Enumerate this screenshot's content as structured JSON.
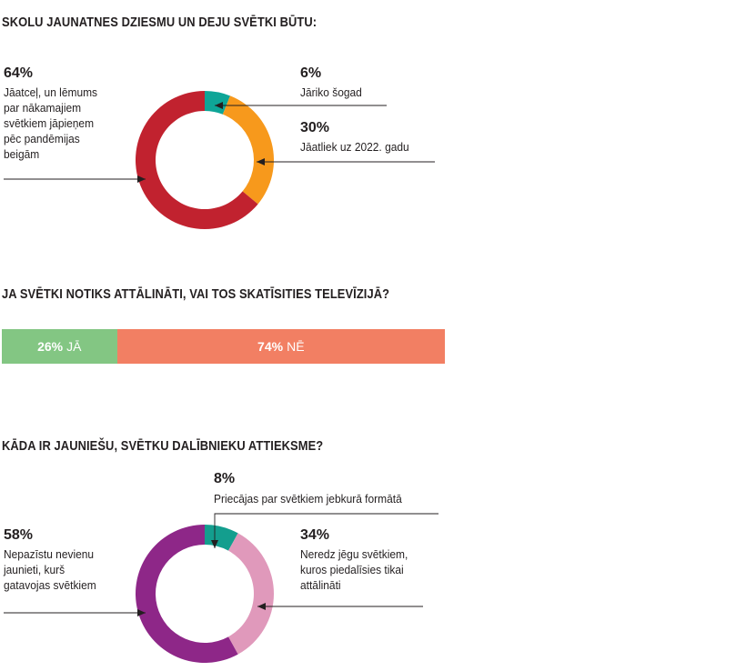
{
  "chart_data": [
    {
      "type": "pie",
      "title": "SKOLU JAUNATNES DZIESMU UN DEJU SVĒTKI BŪTU:",
      "slices": [
        {
          "percent_label": "6%",
          "value": 6,
          "label": "Jāriko šogad",
          "color": "#0ea597"
        },
        {
          "percent_label": "30%",
          "value": 30,
          "label": "Jāatliek uz 2022. gadu",
          "color": "#f7991c"
        },
        {
          "percent_label": "64%",
          "value": 64,
          "label": "Jāatceļ, un lēmums\npar nākamajiem\nsvētkiem jāpieņem\npēc pandēmijas\nbeigām",
          "color": "#c1222f"
        }
      ]
    },
    {
      "type": "bar",
      "title": "JA SVĒTKI NOTIKS ATTĀLINĀTI, VAI TOS SKATĪSITIES TELEVĪZIJĀ?",
      "segments": [
        {
          "percent_label": "26%",
          "value": 26,
          "label": "JĀ",
          "color": "#83c683"
        },
        {
          "percent_label": "74%",
          "value": 74,
          "label": "NĒ",
          "color": "#f27f63"
        }
      ]
    },
    {
      "type": "pie",
      "title": "KĀDA IR JAUNIEŠU, SVĒTKU DALĪBNIEKU ATTIEKSME?",
      "slices": [
        {
          "percent_label": "8%",
          "value": 8,
          "label": "Priecājas par svētkiem jebkurā formātā",
          "color": "#139e8e"
        },
        {
          "percent_label": "34%",
          "value": 34,
          "label": "Neredz jēgu svētkiem,\nkuros piedalīsies tikai\nattālināti",
          "color": "#e099bb"
        },
        {
          "percent_label": "58%",
          "value": 58,
          "label": "Nepazīstu nevienu\njaunieti, kurš\ngatavojas svētkiem",
          "color": "#8e2788"
        }
      ]
    }
  ]
}
